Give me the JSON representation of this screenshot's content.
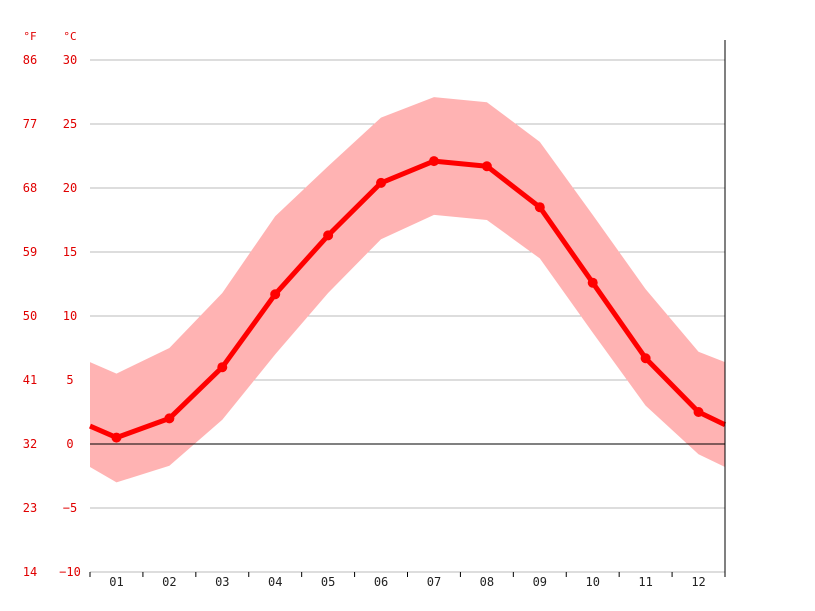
{
  "chart_data": {
    "type": "line",
    "title": "",
    "xlabel": "",
    "ylabel": "",
    "categories": [
      "01",
      "02",
      "03",
      "04",
      "05",
      "06",
      "07",
      "08",
      "09",
      "10",
      "11",
      "12"
    ],
    "series": [
      {
        "values": [
          0.5,
          2.0,
          6.0,
          11.7,
          16.3,
          20.4,
          22.1,
          21.7,
          18.5,
          12.6,
          6.7,
          2.5
        ]
      }
    ],
    "band_upper": [
      5.5,
      7.5,
      11.8,
      17.8,
      21.7,
      25.5,
      27.1,
      26.7,
      23.6,
      17.9,
      12.1,
      7.2
    ],
    "band_lower": [
      -3.0,
      -1.7,
      1.9,
      7.0,
      11.8,
      16.0,
      17.9,
      17.5,
      14.5,
      8.7,
      3.0,
      -0.8
    ],
    "edge_values": {
      "line_start": 1.4,
      "line_end": 1.5,
      "upper_start": 6.4,
      "upper_end": 6.4,
      "lower_start": -1.8,
      "lower_end": -1.8
    },
    "ylim_c": [
      -10,
      30
    ],
    "yticks_c": [
      "30",
      "25",
      "20",
      "15",
      "10",
      "5",
      "0",
      "−5",
      "−10"
    ],
    "yticks_f": [
      "86",
      "77",
      "68",
      "59",
      "50",
      "41",
      "32",
      "23",
      "14"
    ],
    "unit_f": "°F",
    "unit_c": "°C",
    "grid": true,
    "colors": {
      "line": "#ff0000",
      "band": "#ffb3b3",
      "grid": "#bbbbbb",
      "zero_line": "#000000",
      "y_tick_text": "#e00000"
    }
  }
}
